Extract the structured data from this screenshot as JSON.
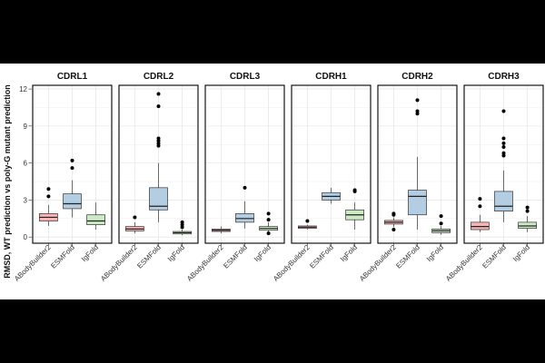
{
  "chart_data": {
    "type": "boxplot",
    "ylabel": "RMSD, WT prediction vs poly-G mutant prediction",
    "ylim": [
      -0.5,
      12.3
    ],
    "yticks": [
      0,
      3,
      6,
      9,
      12
    ],
    "grid": true,
    "methods": [
      "ABodyBuilder2",
      "ESMFold",
      "IgFold"
    ],
    "colors": {
      "ABodyBuilder2": "#f8b4b4",
      "ESMFold": "#b3cde3",
      "IgFold": "#ccebc5"
    },
    "panels": [
      {
        "title": "CDRL1",
        "boxes": [
          {
            "method": "ABodyBuilder2",
            "whisker_low": 0.9,
            "q1": 1.3,
            "median": 1.6,
            "q3": 1.9,
            "whisker_high": 2.6,
            "outliers": [
              3.3,
              3.9
            ]
          },
          {
            "method": "ESMFold",
            "whisker_low": 1.6,
            "q1": 2.3,
            "median": 2.7,
            "q3": 3.5,
            "whisker_high": 4.6,
            "outliers": [
              5.6,
              6.2
            ]
          },
          {
            "method": "IgFold",
            "whisker_low": 0.6,
            "q1": 1.0,
            "median": 1.3,
            "q3": 1.8,
            "whisker_high": 2.8,
            "outliers": []
          }
        ]
      },
      {
        "title": "CDRL2",
        "boxes": [
          {
            "method": "ABodyBuilder2",
            "whisker_low": 0.3,
            "q1": 0.5,
            "median": 0.65,
            "q3": 0.85,
            "whisker_high": 1.2,
            "outliers": [
              1.6
            ]
          },
          {
            "method": "ESMFold",
            "whisker_low": 1.2,
            "q1": 2.2,
            "median": 2.5,
            "q3": 4.0,
            "whisker_high": 6.0,
            "outliers": [
              7.4,
              7.6,
              7.8,
              8.0,
              10.6,
              11.6
            ]
          },
          {
            "method": "IgFold",
            "whisker_low": 0.15,
            "q1": 0.25,
            "median": 0.35,
            "q3": 0.45,
            "whisker_high": 0.6,
            "outliers": [
              0.8,
              1.0,
              1.2
            ]
          }
        ]
      },
      {
        "title": "CDRL3",
        "boxes": [
          {
            "method": "ABodyBuilder2",
            "whisker_low": 0.3,
            "q1": 0.45,
            "median": 0.55,
            "q3": 0.65,
            "whisker_high": 0.85,
            "outliers": []
          },
          {
            "method": "ESMFold",
            "whisker_low": 0.7,
            "q1": 1.2,
            "median": 1.5,
            "q3": 1.9,
            "whisker_high": 2.9,
            "outliers": [
              4.0
            ]
          },
          {
            "method": "IgFold",
            "whisker_low": 0.4,
            "q1": 0.55,
            "median": 0.7,
            "q3": 0.85,
            "whisker_high": 1.2,
            "outliers": [
              0.3,
              1.4,
              1.9
            ]
          }
        ]
      },
      {
        "title": "CDRH1",
        "boxes": [
          {
            "method": "ABodyBuilder2",
            "whisker_low": 0.6,
            "q1": 0.7,
            "median": 0.8,
            "q3": 0.9,
            "whisker_high": 1.0,
            "outliers": [
              1.3
            ]
          },
          {
            "method": "ESMFold",
            "whisker_low": 2.7,
            "q1": 3.0,
            "median": 3.3,
            "q3": 3.6,
            "whisker_high": 4.0,
            "outliers": []
          },
          {
            "method": "IgFold",
            "whisker_low": 0.6,
            "q1": 1.4,
            "median": 1.8,
            "q3": 2.2,
            "whisker_high": 2.8,
            "outliers": [
              3.7,
              3.8
            ]
          }
        ]
      },
      {
        "title": "CDRH2",
        "boxes": [
          {
            "method": "ABodyBuilder2",
            "whisker_low": 0.8,
            "q1": 1.05,
            "median": 1.2,
            "q3": 1.35,
            "whisker_high": 1.6,
            "outliers": [
              0.6,
              1.8,
              1.9
            ]
          },
          {
            "method": "ESMFold",
            "whisker_low": 0.6,
            "q1": 1.8,
            "median": 3.3,
            "q3": 3.8,
            "whisker_high": 6.5,
            "outliers": [
              10.0,
              10.2,
              11.1
            ]
          },
          {
            "method": "IgFold",
            "whisker_low": 0.2,
            "q1": 0.35,
            "median": 0.5,
            "q3": 0.65,
            "whisker_high": 0.9,
            "outliers": [
              1.1,
              1.7
            ]
          }
        ]
      },
      {
        "title": "CDRH3",
        "boxes": [
          {
            "method": "ABodyBuilder2",
            "whisker_low": 0.4,
            "q1": 0.6,
            "median": 0.85,
            "q3": 1.2,
            "whisker_high": 1.8,
            "outliers": [
              2.5,
              3.1
            ]
          },
          {
            "method": "ESMFold",
            "whisker_low": 1.2,
            "q1": 2.1,
            "median": 2.5,
            "q3": 3.7,
            "whisker_high": 5.4,
            "outliers": [
              6.6,
              6.8,
              7.3,
              7.6,
              8.0,
              10.2
            ]
          },
          {
            "method": "IgFold",
            "whisker_low": 0.4,
            "q1": 0.7,
            "median": 0.9,
            "q3": 1.2,
            "whisker_high": 1.7,
            "outliers": [
              2.1,
              2.4
            ]
          }
        ]
      }
    ]
  }
}
